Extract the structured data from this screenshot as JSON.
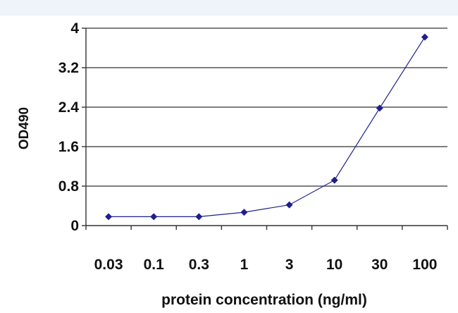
{
  "chart_data": {
    "type": "line",
    "title": "",
    "xlabel": "protein concentration (ng/ml)",
    "ylabel": "OD490",
    "categories": [
      "0.03",
      "0.1",
      "0.3",
      "1",
      "3",
      "10",
      "30",
      "100"
    ],
    "y_ticks": [
      "0",
      "0.8",
      "1.6",
      "2.4",
      "3.2",
      "4"
    ],
    "ylim": [
      0,
      4
    ],
    "grid": true,
    "legend": "none",
    "series": [
      {
        "values": [
          0.18,
          0.18,
          0.18,
          0.27,
          0.42,
          0.92,
          2.38,
          3.82
        ]
      }
    ],
    "colors": {
      "series": "#1f1f8f",
      "grid": "#555555",
      "axis": "#333333"
    }
  }
}
